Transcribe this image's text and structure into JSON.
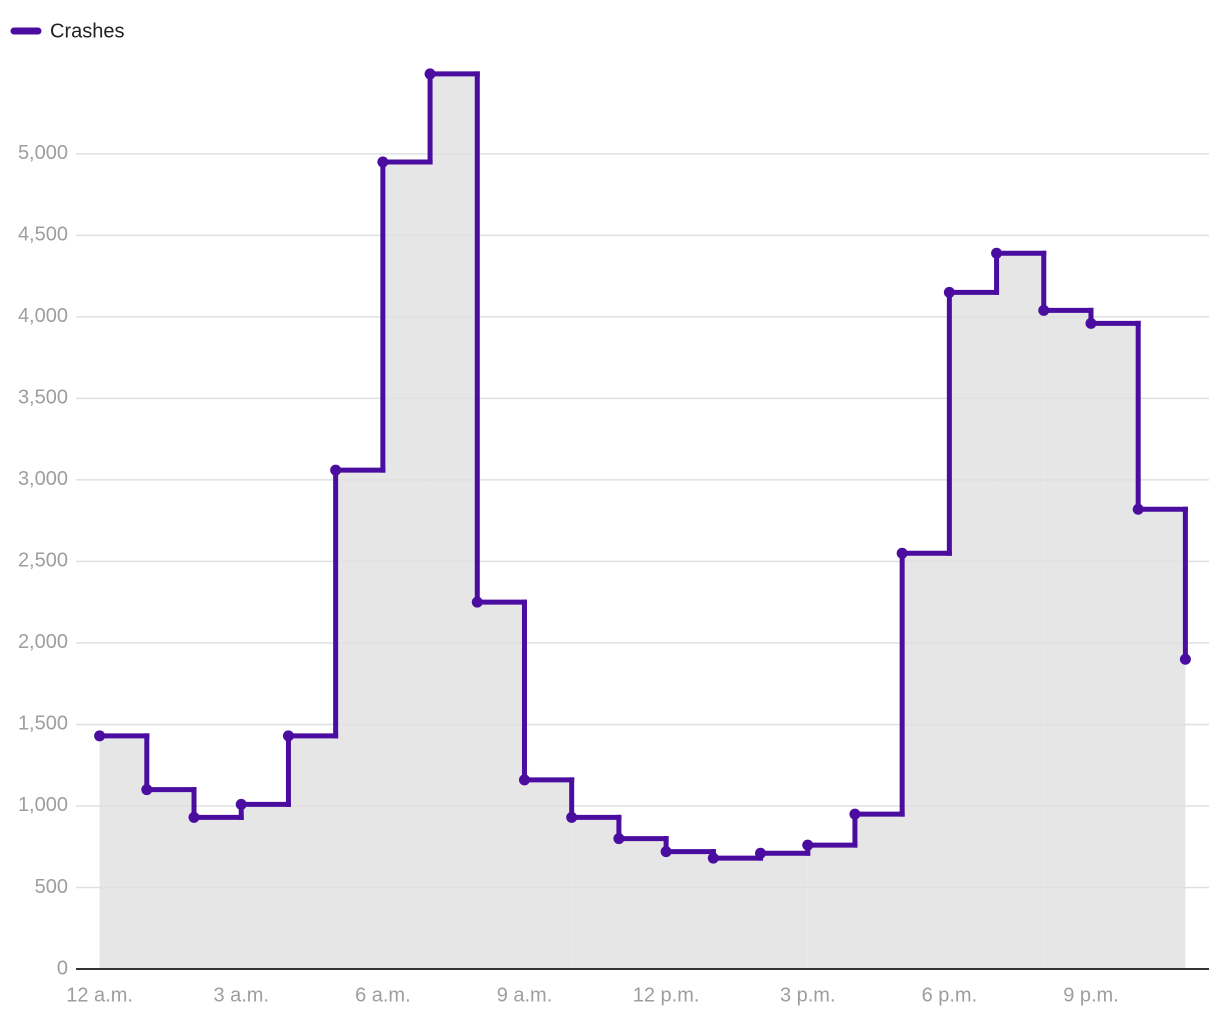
{
  "chart_data": {
    "type": "step",
    "x": [
      0,
      1,
      2,
      3,
      4,
      5,
      6,
      7,
      8,
      9,
      10,
      11,
      12,
      13,
      14,
      15,
      16,
      17,
      18,
      19,
      20,
      21,
      22,
      23
    ],
    "series": [
      {
        "name": "Crashes",
        "color": "#4b0ca0",
        "values": [
          1430,
          1100,
          930,
          1010,
          1430,
          3060,
          4950,
          5490,
          2250,
          1160,
          930,
          800,
          720,
          680,
          710,
          760,
          950,
          2550,
          4150,
          4390,
          4040,
          3960,
          2820,
          1900
        ]
      }
    ],
    "fill": "#e6e6e6",
    "xlim": [
      -0.5,
      23.5
    ],
    "xticks": [
      {
        "value": 0,
        "label": "12 a.m."
      },
      {
        "value": 3,
        "label": "3 a.m."
      },
      {
        "value": 6,
        "label": "6 a.m."
      },
      {
        "value": 9,
        "label": "9 a.m."
      },
      {
        "value": 12,
        "label": "12 p.m."
      },
      {
        "value": 15,
        "label": "3 p.m."
      },
      {
        "value": 18,
        "label": "6 p.m."
      },
      {
        "value": 21,
        "label": "9 p.m."
      }
    ],
    "ylim": [
      0,
      5600
    ],
    "yticks": [
      0,
      500,
      {
        "value": 1000,
        "label": "1,000"
      },
      {
        "value": 1500,
        "label": "1,500"
      },
      {
        "value": 2000,
        "label": "2,000"
      },
      {
        "value": 2500,
        "label": "2,500"
      },
      {
        "value": 3000,
        "label": "3,000"
      },
      {
        "value": 3500,
        "label": "3,500"
      },
      {
        "value": 4000,
        "label": "4,000"
      },
      {
        "value": 4500,
        "label": "4,500"
      },
      {
        "value": 5000,
        "label": "5,000"
      }
    ],
    "grid": true,
    "legend": "top-left"
  }
}
